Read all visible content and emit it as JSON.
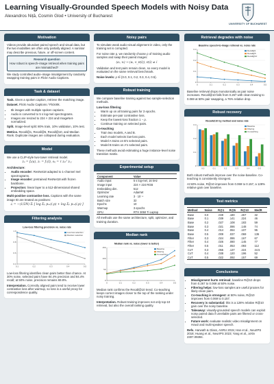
{
  "header": {
    "title": "Learning Visually-Grounded Speech Models with Noisy Data",
    "authors": "Alexandros Niță, Cosmin Glod  •  University of Bucharest",
    "logo_text": "UNIVERSITY OF BUCHAREST"
  },
  "columns": [
    [
      {
        "title": "Motivation",
        "blocks": [
          {
            "p": "Videos provide abundant paired speech and visual data, but the two modalities are often only partially aligned. A narrator may describe previous, future, or off-screen content."
          },
          {
            "callout": {
              "title": "Research question",
              "text": "How robust is speech–image retrieval when training pairs are mismatched?"
            }
          },
          {
            "p": "We study controlled audio–image misalignment by randomly swapping training pairs in Flickr Audio Captions."
          }
        ]
      },
      {
        "title": "Task & dataset",
        "blocks": [
          {
            "lead": "Task.",
            "text": "Given a spoken caption, retrieve the matching image."
          },
          {
            "lead": "Dataset.",
            "text": "Flickr Audio Captions / Flickr8k."
          },
          {
            "list": [
              "8k images with multiple spoken captions.",
              "Audio is converted to 5 s log-mel spectrograms.",
              "Images are resized to 224 × 224 and ImageNet-normalized."
            ]
          },
          {
            "lead": "Split.",
            "text": "Image-level split: 80% train, 10% validation, 10% test."
          },
          {
            "lead": "Metrics.",
            "text": "Recall@1, Recall@5, Recall@10, and Median Rank. Duplicate images are collapsed during evaluation."
          }
        ]
      },
      {
        "title": "Model",
        "blocks": [
          {
            "p": "We use a CLIP-style two-tower retrieval model."
          },
          {
            "formula": "zₐ = fₐ(a),    zᵥ = fᵥ(I),    sᵢⱼ = τ zₐᵢᵀ zᵥⱼ"
          },
          {
            "sub": "Architecture:"
          },
          {
            "list": [
              {
                "lead": "Audio encoder:",
                "text": "ResNet18 adapted to 1-channel mel spectrograms."
              },
              {
                "lead": "Image encoder:",
                "text": "pretrained ResNet18 with frozen backbone."
              },
              {
                "lead": "Projection:",
                "text": "linear layer to a 512-dimensional shared embedding space."
              }
            ]
          },
          {
            "lead": "Multi-positive contrastive loss.",
            "text": "Captions with the same image ID are treated as positives:"
          },
          {
            "formula": "ℒ = −(1/2N) Σᵢ [ log Σₚ pₐᵥ(i,p) + log Σₚ pᵥₐ(i,p) ]"
          }
        ]
      },
      {
        "title": "Filtering analysis",
        "blocks": [
          {
            "chart": {
              "type": "line",
              "title": "Low-loss filtering precision vs. noise rate",
              "x": [
                0.1,
                0.2,
                0.3,
                0.4,
                0.5
              ],
              "xlim": [
                0.1,
                0.5
              ],
              "xticks": [
                0.1,
                0.2,
                0.3,
                0.4,
                0.5
              ],
              "ylim": [
                0.4,
                1
              ],
              "yticks": [
                0.4,
                0.6,
                0.8,
                {
                  "value": 1,
                  "label": "1.0"
                }
              ],
              "series": [
                {
                  "name": "Low-loss selection",
                  "color": "#2a7fb8",
                  "values": [
                    0.97,
                    0.92,
                    0.844,
                    0.78,
                    0.698
                  ]
                },
                {
                  "name": "Random selection",
                  "color": "#999999",
                  "values": [
                    0.9,
                    0.8,
                    0.7,
                    0.6,
                    0.5
                  ]
                }
              ]
            }
          },
          {
            "p": "Low-loss filtering identifies clean pairs better than chance. At 30% noise, selected pairs have 84.4% precision and 84.4% recall; at 50% noise, precision remains 69.8%."
          },
          {
            "lead": "Interpretation.",
            "text": "Correctly aligned pairs tend to receive lower contrastive loss after warmup, so loss is a useful proxy for correspondence quality."
          }
        ]
      }
    ],
    [
      {
        "title": "Noisy pairs",
        "blocks": [
          {
            "p": "To simulate weak audio-visual alignment in video, only the training set is corrupted."
          },
          {
            "p": "For noise rate ρ, we randomly choose ρ of training audio samples and swap their paired images:"
          },
          {
            "formula": "(aᵢ, vᵢ) → (aᵢ, v_π(i)),    π(i) ≠ i"
          },
          {
            "p": "Validation and test pairs remain clean, so every model is evaluated on the same retrieval benchmark."
          },
          {
            "lead": "Noise levels:",
            "text": "ρ ∈ {0.0, 0.1, 0.2, 0.3, 0.4, 0.5}."
          }
        ]
      },
      {
        "title": "Robust training",
        "blocks": [
          {
            "p": "We compare baseline training against two sample-selection methods."
          },
          {
            "sub": "Low-loss filtering"
          },
          {
            "list": [
              "Warm up on all training pairs for 3 epochs.",
              "Estimate per-pair contrastive loss.",
              "Keep the lowest-loss fraction 1 − ρ.",
              "Continue training on selected pairs."
            ]
          },
          {
            "sub": "Co-teaching"
          },
          {
            "list": [
              "Train two models, A and B.",
              "Each model selects low-loss pairs.",
              "Model A trains on B's selected pairs.",
              "Model B trains on A's selected pairs."
            ]
          },
          {
            "p": "These methods avoid estimating a huge instance-level noise transition matrix."
          }
        ]
      },
      {
        "title": "Experimental setup",
        "blocks": [
          {
            "table": {
              "header": [
                "Component",
                "Value"
              ],
              "rows": [
                [
                  "Audio input",
                  "5 s log-mel, 16 kHz"
                ],
                [
                  "Image input",
                  "224 × 224 RGB"
                ],
                [
                  "Embedding dim.",
                  "512"
                ],
                [
                  "Optimizer",
                  "AdamW"
                ],
                [
                  "Learning rate",
                  "3 · 10⁻⁴"
                ],
                [
                  "Batch size",
                  "32"
                ],
                [
                  "Epochs",
                  "10"
                ],
                [
                  "Warmup",
                  "3 epochs"
                ],
                [
                  "GPU",
                  "RTX 3050 Ti Laptop"
                ]
              ]
            }
          },
          {
            "p": "All methods use the same architecture, split, optimizer, and training duration."
          }
        ]
      },
      {
        "title": "Median rank",
        "blocks": [
          {
            "chart": {
              "type": "line",
              "title": "Median rank vs. noise (lower is better)",
              "x": [
                0,
                0.1,
                0.2,
                0.3,
                0.4,
                0.5
              ],
              "xlim": [
                0,
                0.5
              ],
              "xticks": [
                0,
                0.1,
                0.2,
                0.3,
                0.4,
                0.5
              ],
              "ylim": [
                0,
                150
              ],
              "yticks": [
                0,
                50,
                100,
                150
              ],
              "series": [
                {
                  "name": "Baseline",
                  "color": "#2a7fb8",
                  "values": [
                    32,
                    46,
                    59,
                    74,
                    95,
                    136
                  ]
                },
                {
                  "name": "Filtering",
                  "color": "#e8862a",
                  "values": [
                    33,
                    44,
                    55,
                    67,
                    77,
                    112
                  ]
                },
                {
                  "name": "Co-teaching",
                  "color": "#3a9a3f",
                  "values": [
                    30,
                    38,
                    41,
                    44.5,
                    52,
                    69
                  ]
                }
              ]
            }
          },
          {
            "p": "Median rank confirms the Recall@10 trend. Co-teaching keeps correct images closer to the top of the ranking under noisy training."
          },
          {
            "lead": "Interpretation.",
            "text": "Robust training improves not only top-10 retrieval, but also the overall ranking quality."
          }
        ]
      }
    ],
    [
      {
        "title": "Retrieval degrades with noise",
        "blocks": [
          {
            "chart": {
              "type": "line",
              "title": "Baseline speech-to-image retrieval vs. noise rate",
              "x": [
                0,
                0.1,
                0.2,
                0.3,
                0.4,
                0.5
              ],
              "xlim": [
                0,
                0.5
              ],
              "xticks": [
                0,
                0.1,
                0.2,
                0.3,
                0.4,
                0.5
              ],
              "ylim": [
                0,
                0.3
              ],
              "yticks": [
                0,
                0.1,
                0.2,
                0.3
              ],
              "series": [
                {
                  "name": "Recall@1",
                  "color": "#2a7fb8",
                  "values": [
                    0.049,
                    0.039,
                    0.027,
                    0.021,
                    0.014,
                    0.009
                  ]
                },
                {
                  "name": "Recall@5",
                  "color": "#e8862a",
                  "values": [
                    0.18,
                    0.141,
                    0.108,
                    0.086,
                    0.064,
                    0.037
                  ]
                },
                {
                  "name": "Recall@10",
                  "color": "#3a9a3f",
                  "values": [
                    0.267,
                    0.224,
                    0.183,
                    0.148,
                    0.107,
                    0.069
                  ]
                }
              ]
            }
          },
          {
            "p": "Baseline retrieval drops monotonically as pair noise increases. Recall@10 falls from 0.267 with clean training to 0.069 at 50% pair swapping, a 76% relative drop."
          }
        ]
      },
      {
        "title": "Robust recovery",
        "blocks": [
          {
            "chart": {
              "type": "bar",
              "title": "Recall@10 by method and noise rate",
              "categories": [
                "0.0",
                "0.1",
                "0.2",
                "0.3",
                "0.4",
                "0.5"
              ],
              "ylim": [
                0,
                0.3
              ],
              "yticks": [
                0,
                0.1,
                0.2,
                0.3
              ],
              "series": [
                {
                  "name": "Baseline",
                  "color": "#2a7fb8",
                  "values": [
                    0.267,
                    0.224,
                    0.183,
                    0.148,
                    0.107,
                    0.069
                  ]
                },
                {
                  "name": "Filtering",
                  "color": "#e8862a",
                  "values": [
                    0.261,
                    0.231,
                    0.198,
                    0.167,
                    0.145,
                    0.093
                  ]
                },
                {
                  "name": "Co-teaching",
                  "color": "#3a9a3f",
                  "values": [
                    0.275,
                    0.245,
                    0.231,
                    0.224,
                    0.196,
                    0.157
                  ]
                }
              ]
            }
          },
          {
            "p": "Both robust methods improve over the noise-baseline. Co-teaching is consistently strongest."
          },
          {
            "p": "At 50% noise, R@10 improves from 0.069 to 0.157, a 128% relative gain over baseline."
          }
        ]
      },
      {
        "title": "Test metrics",
        "blocks": [
          {
            "table": {
              "header": [
                "Method",
                "Noise",
                "R@1",
                "R@5",
                "R@10",
                "MedR"
              ],
              "rows": [
                [
                  "Base",
                  "0.0",
                  ".049",
                  ".180",
                  ".267",
                  "32"
                ],
                [
                  "Base",
                  "0.1",
                  ".039",
                  ".141",
                  ".224",
                  "46"
                ],
                [
                  "Base",
                  "0.2",
                  ".027",
                  ".108",
                  ".183",
                  "59"
                ],
                [
                  "Base",
                  "0.3",
                  ".021",
                  ".086",
                  ".148",
                  "74"
                ],
                [
                  "Base",
                  "0.4",
                  ".014",
                  ".064",
                  ".107",
                  "95"
                ],
                [
                  "Base",
                  "0.5",
                  ".009",
                  ".037",
                  ".069",
                  "136"
                ],
                [
                  "Filter",
                  "0.3",
                  ".024",
                  ".086",
                  ".167",
                  "67"
                ],
                [
                  "Filter",
                  "0.4",
                  ".026",
                  ".080",
                  ".145",
                  "77"
                ],
                [
                  "Filter",
                  "0.5",
                  ".011",
                  ".053",
                  ".093",
                  "112"
                ],
                [
                  "CoT",
                  "0.3",
                  ".055",
                  ".137",
                  ".224",
                  "44.5"
                ],
                [
                  "CoT",
                  "0.4",
                  ".038",
                  ".120",
                  ".196",
                  "52"
                ],
                [
                  "CoT",
                  "0.5",
                  ".022",
                  ".092",
                  ".157",
                  "69"
                ]
              ]
            }
          }
        ]
      },
      {
        "title": "Conclusions",
        "blocks": [
          {
            "list": [
              {
                "lead": "Misalignment hurts retrieval:",
                "text": "baseline R@10 drops from 0.267 to 0.069 at 50% noise."
              },
              {
                "lead": "Filtering helps:",
                "text": "low-loss samples are useful proxies for likely-clean pairs."
              },
              {
                "lead": "Co-teaching is strongest:",
                "text": "at 50% noise, R@10 improves from 0.069 to 0.157."
              },
              {
                "lead": "Recovery is substantial:",
                "text": "this is a 128% relative R@10 gain over the noisy baseline."
              },
              {
                "lead": "Takeaway:",
                "text": "visually-grounded speech models can exploit noisy paired data if unreliable pairs are filtered or cross-selected."
              },
              {
                "lead": "Future work:",
                "text": "evaluate realistic video misalignment on How2 and multi-speaker speech."
              }
            ]
          },
          {
            "lead": "Refs.",
            "text": "Harwath & Glass, ASRU 2015; Han et al., NeurIPS 2018; Huang et al., NeurIPS 2023; Yang et al., arXiv 2307.09394."
          }
        ]
      }
    ]
  ]
}
